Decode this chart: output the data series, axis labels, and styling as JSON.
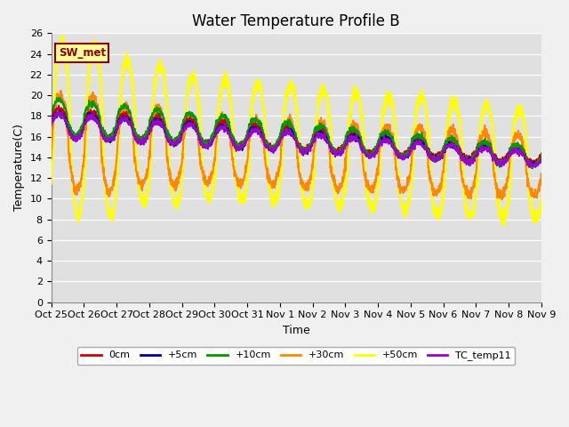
{
  "title": "Water Temperature Profile B",
  "xlabel": "Time",
  "ylabel": "Temperature(C)",
  "ylim": [
    0,
    26
  ],
  "yticks": [
    0,
    2,
    4,
    6,
    8,
    10,
    12,
    14,
    16,
    18,
    20,
    22,
    24,
    26
  ],
  "annotation": "SW_met",
  "tick_labels": [
    "Oct 25",
    "Oct 26",
    "Oct 27",
    "Oct 28",
    "Oct 29",
    "Oct 30",
    "Oct 31",
    "Nov 1",
    "Nov 2",
    "Nov 3",
    "Nov 4",
    "Nov 5",
    "Nov 6",
    "Nov 7",
    "Nov 8",
    "Nov 9"
  ],
  "series_names": [
    "0cm",
    "+5cm",
    "+10cm",
    "+30cm",
    "+50cm",
    "TC_temp11"
  ],
  "series_colors": [
    "#cc0000",
    "#000099",
    "#009900",
    "#ff8800",
    "#ffff00",
    "#9900cc"
  ],
  "series_linewidths": [
    1.2,
    1.2,
    1.2,
    1.5,
    1.8,
    1.2
  ],
  "plot_bg_color": "#e0e0e0",
  "fig_bg_color": "#f0f0f0",
  "grid_color": "#ffffff",
  "annotation_fg": "#8b0000",
  "annotation_bg": "#ffff99",
  "annotation_edge": "#8b0000",
  "title_fontsize": 12,
  "axis_label_fontsize": 9,
  "tick_fontsize": 8
}
